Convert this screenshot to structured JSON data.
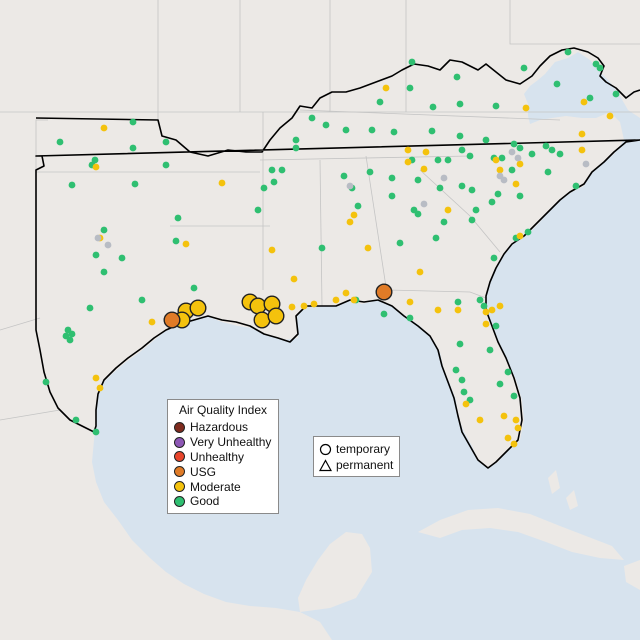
{
  "legend": {
    "title": "Air Quality Index",
    "categories": [
      {
        "label": "Hazardous",
        "color": "#7e2b1e"
      },
      {
        "label": "Very Unhealthy",
        "color": "#8d57b5"
      },
      {
        "label": "Unhealthy",
        "color": "#e8452c"
      },
      {
        "label": "USG",
        "color": "#e07b27"
      },
      {
        "label": "Moderate",
        "color": "#f4c20d"
      },
      {
        "label": "Good",
        "color": "#2fbf71"
      }
    ]
  },
  "monitor_types": [
    {
      "label": "temporary",
      "symbol": "circle"
    },
    {
      "label": "permanent",
      "symbol": "triangle"
    }
  ],
  "colors": {
    "water": "#d7e3ee",
    "land": "#ece9e6",
    "border": "#c4c4c4",
    "region_outline": "#000000",
    "no_data": "#b8bcc4"
  }
}
